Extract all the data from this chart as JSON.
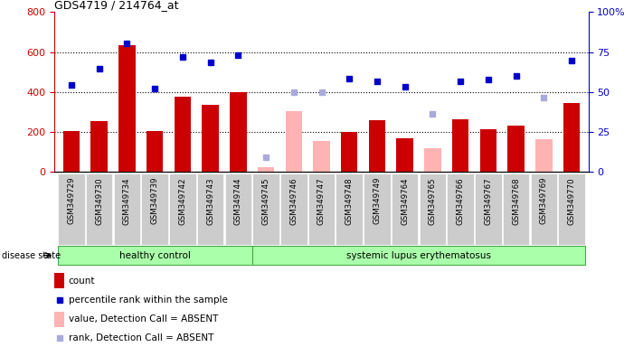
{
  "title": "GDS4719 / 214764_at",
  "samples": [
    "GSM349729",
    "GSM349730",
    "GSM349734",
    "GSM349739",
    "GSM349742",
    "GSM349743",
    "GSM349744",
    "GSM349745",
    "GSM349746",
    "GSM349747",
    "GSM349748",
    "GSM349749",
    "GSM349764",
    "GSM349765",
    "GSM349766",
    "GSM349767",
    "GSM349768",
    "GSM349769",
    "GSM349770"
  ],
  "hc_count": 7,
  "count": [
    205,
    255,
    635,
    205,
    378,
    335,
    400,
    null,
    null,
    null,
    200,
    260,
    170,
    null,
    265,
    215,
    230,
    null,
    345
  ],
  "count_absent": [
    null,
    null,
    null,
    null,
    null,
    null,
    null,
    25,
    305,
    155,
    null,
    null,
    null,
    120,
    null,
    null,
    null,
    165,
    null
  ],
  "percentile_left": [
    435,
    515,
    643,
    415,
    575,
    550,
    585,
    null,
    null,
    null,
    465,
    455,
    428,
    null,
    455,
    462,
    480,
    null,
    558
  ],
  "percentile_absent_left": [
    null,
    null,
    null,
    null,
    null,
    null,
    null,
    75,
    400,
    400,
    null,
    null,
    null,
    290,
    null,
    null,
    null,
    370,
    null
  ],
  "bar_color_present": "#cc0000",
  "bar_color_absent": "#ffb3b3",
  "dot_color_present": "#0000cc",
  "dot_color_absent": "#aaaadd",
  "left_ylim": [
    0,
    800
  ],
  "right_ylim": [
    0,
    100
  ],
  "left_yticks": [
    0,
    200,
    400,
    600,
    800
  ],
  "right_yticks": [
    0,
    25,
    50,
    75,
    100
  ],
  "right_yticklabels": [
    "0",
    "25",
    "50",
    "75",
    "100%"
  ],
  "hlines": [
    200,
    400,
    600
  ],
  "group_label_hc": "healthy control",
  "group_label_sle": "systemic lupus erythematosus",
  "group_color": "#aaffaa",
  "group_border": "#44aa44",
  "legend_items": [
    {
      "color": "#cc0000",
      "type": "rect",
      "label": "count"
    },
    {
      "color": "#0000cc",
      "type": "square",
      "label": "percentile rank within the sample"
    },
    {
      "color": "#ffb3b3",
      "type": "rect",
      "label": "value, Detection Call = ABSENT"
    },
    {
      "color": "#aaaadd",
      "type": "square",
      "label": "rank, Detection Call = ABSENT"
    }
  ],
  "xtick_bg": "#cccccc",
  "plot_bg": "#ffffff",
  "disease_state_label": "disease state"
}
